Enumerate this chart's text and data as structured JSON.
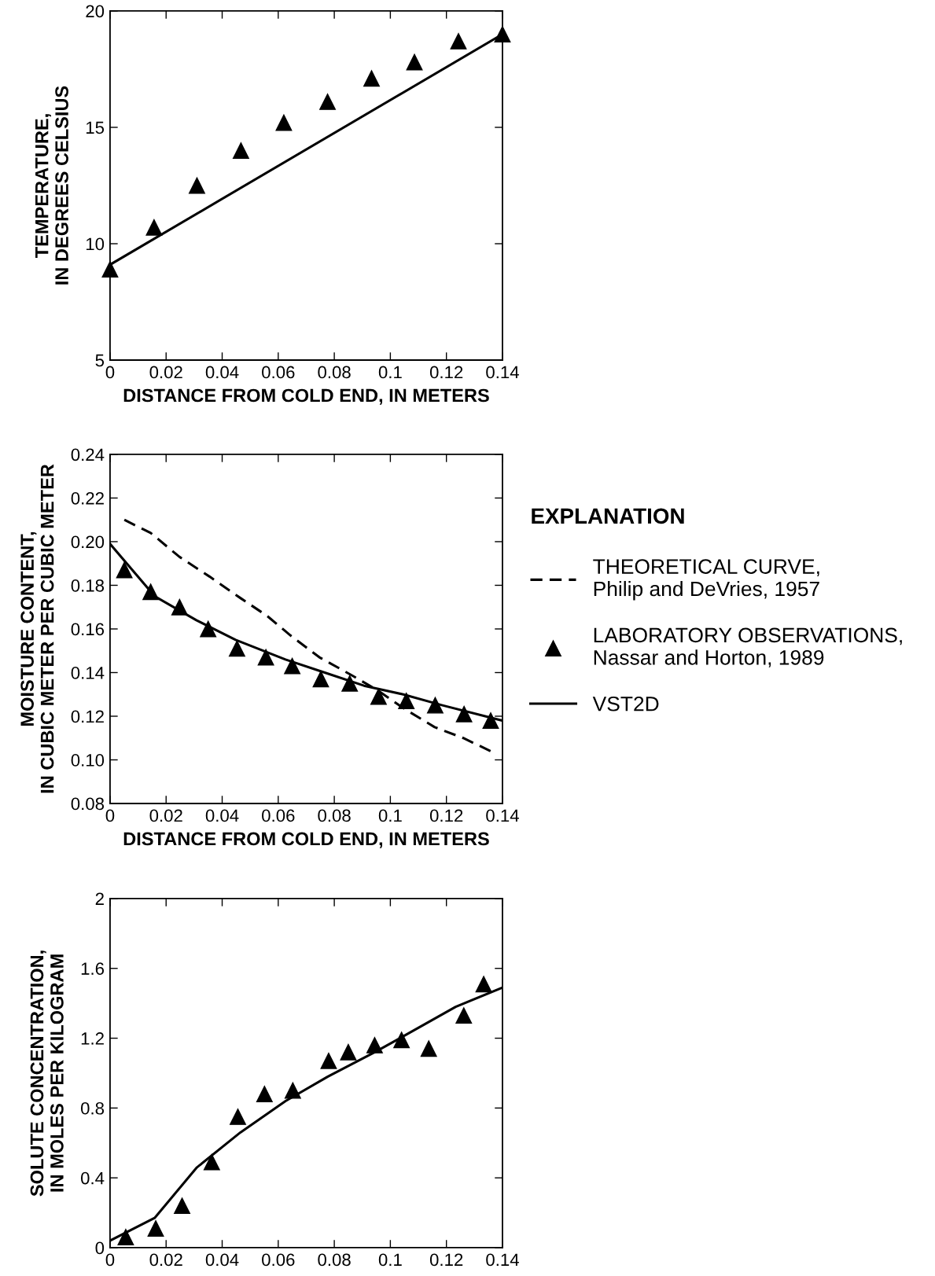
{
  "chart_data": [
    {
      "type": "line",
      "xlabel": "DISTANCE FROM COLD END, IN METERS",
      "ylabel": "TEMPERATURE,\nIN DEGREES CELSIUS",
      "xlim": [
        0,
        0.14
      ],
      "xticks": [
        0,
        0.02,
        0.04,
        0.06,
        0.08,
        0.1,
        0.12,
        0.14
      ],
      "ylim": [
        5,
        20
      ],
      "yticks": [
        5,
        10,
        15,
        20
      ],
      "grid": false,
      "legend": false,
      "series": [
        {
          "type": "scatter",
          "marker": "triangle",
          "color": "#000000",
          "x": [
            0,
            0.0157,
            0.031,
            0.0467,
            0.062,
            0.0776,
            0.0933,
            0.1086,
            0.1243,
            0.14
          ],
          "values": [
            8.9,
            10.7,
            12.5,
            14.0,
            15.2,
            16.1,
            17.1,
            17.8,
            18.7,
            19.0
          ]
        },
        {
          "line_style": "solid",
          "color": "#000000",
          "x": [
            0,
            0.14
          ],
          "values": [
            9.1,
            19.0
          ]
        }
      ]
    },
    {
      "type": "line",
      "xlabel": "DISTANCE FROM COLD END, IN METERS",
      "ylabel": "MOISTURE CONTENT,\nIN CUBIC METER PER CUBIC METER",
      "xlim": [
        0,
        0.14
      ],
      "xticks": [
        0,
        0.02,
        0.04,
        0.06,
        0.08,
        0.1,
        0.12,
        0.14
      ],
      "ylim": [
        0.08,
        0.24
      ],
      "yticks": [
        0.08,
        {
          "value": 0.1,
          "label": "0.10"
        },
        0.12,
        0.14,
        0.16,
        0.18,
        {
          "value": 0.2,
          "label": "0.20"
        },
        0.22,
        0.24
      ],
      "grid": false,
      "legend": "right",
      "legend_title": "EXPLANATION",
      "series": [
        {
          "name": "THEORETICAL CURVE,\nPhilip and DeVries, 1957",
          "line_style": "dashed",
          "color": "#000000",
          "x": [
            0.0051,
            0.0145,
            0.0248,
            0.0355,
            0.0467,
            0.056,
            0.0644,
            0.0747,
            0.0859,
            0.0953,
            0.1055,
            0.1158,
            0.126,
            0.1358
          ],
          "values": [
            0.21,
            0.204,
            0.193,
            0.184,
            0.174,
            0.166,
            0.157,
            0.147,
            0.139,
            0.132,
            0.123,
            0.115,
            0.11,
            0.104
          ]
        },
        {
          "type": "scatter",
          "name": "LABORATORY OBSERVATIONS,\nNassar and Horton, 1989",
          "marker": "triangle",
          "color": "#000000",
          "x": [
            0.0051,
            0.0145,
            0.0248,
            0.035,
            0.0453,
            0.0556,
            0.065,
            0.0752,
            0.0855,
            0.0958,
            0.1057,
            0.116,
            0.1263,
            0.1358
          ],
          "values": [
            0.187,
            0.177,
            0.17,
            0.16,
            0.151,
            0.147,
            0.143,
            0.137,
            0.135,
            0.129,
            0.127,
            0.125,
            0.121,
            0.118
          ]
        },
        {
          "name": "VST2D",
          "line_style": "solid",
          "color": "#000000",
          "x": [
            0,
            0.0159,
            0.0308,
            0.0448,
            0.0626,
            0.0766,
            0.0906,
            0.1046,
            0.1186,
            0.14
          ],
          "values": [
            0.199,
            0.175,
            0.164,
            0.155,
            0.146,
            0.14,
            0.134,
            0.13,
            0.125,
            0.118
          ]
        }
      ]
    },
    {
      "type": "line",
      "ylabel": "SOLUTE CONCENTRATION,\nIN MOLES PER KILOGRAM",
      "xlim": [
        0,
        0.14
      ],
      "xticks": [
        0,
        0.02,
        0.04,
        0.06,
        0.08,
        0.1,
        0.12,
        0.14
      ],
      "ylim": [
        0,
        2
      ],
      "yticks": [
        0,
        0.4,
        0.8,
        1.2,
        1.6,
        2
      ],
      "grid": false,
      "legend": false,
      "series": [
        {
          "type": "scatter",
          "marker": "triangle",
          "color": "#000000",
          "x": [
            0.0056,
            0.0163,
            0.0257,
            0.0363,
            0.0456,
            0.0551,
            0.0652,
            0.078,
            0.085,
            0.0944,
            0.104,
            0.1137,
            0.1262,
            0.1333
          ],
          "values": [
            0.06,
            0.11,
            0.24,
            0.49,
            0.75,
            0.88,
            0.9,
            1.07,
            1.12,
            1.16,
            1.19,
            1.14,
            1.33,
            1.51
          ]
        },
        {
          "line_style": "solid",
          "color": "#000000",
          "x": [
            0,
            0.0159,
            0.031,
            0.0465,
            0.0626,
            0.0777,
            0.0944,
            0.1056,
            0.1233,
            0.14
          ],
          "values": [
            0.04,
            0.17,
            0.46,
            0.66,
            0.84,
            0.98,
            1.12,
            1.22,
            1.38,
            1.49
          ]
        }
      ]
    }
  ]
}
